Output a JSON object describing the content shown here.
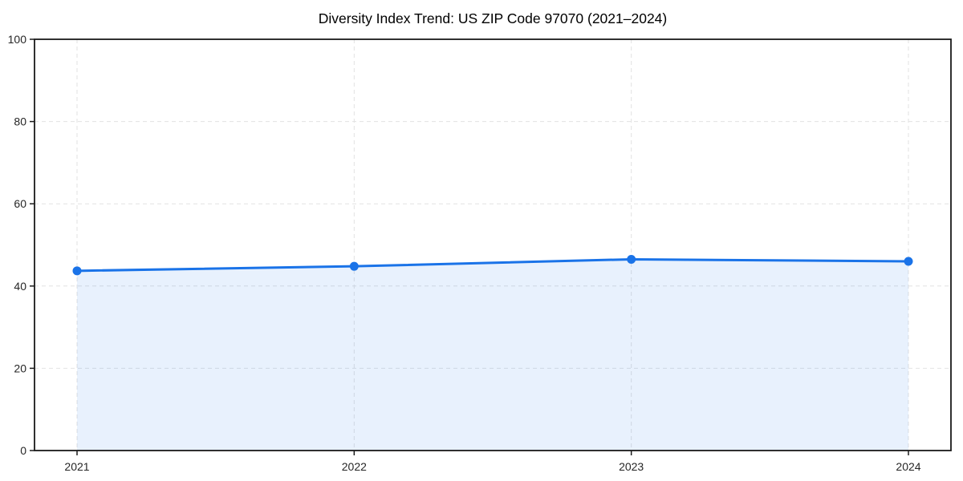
{
  "chart_data": {
    "type": "line",
    "title": "Diversity Index Trend: US ZIP Code 97070 (2021–2024)",
    "categories": [
      "2021",
      "2022",
      "2023",
      "2024"
    ],
    "values": [
      43.7,
      44.8,
      46.5,
      46.0
    ],
    "xlabel": "",
    "ylabel": "",
    "ylim": [
      0,
      100
    ],
    "yticks": [
      0,
      20,
      40,
      60,
      80,
      100
    ],
    "grid": true,
    "grid_style": "dashed",
    "legend": "none",
    "area_fill": true,
    "marker": "circle",
    "colors": {
      "line": "#1a73e8",
      "marker": "#1a73e8",
      "fill": "#1a73e8",
      "fill_opacity": 0.1,
      "grid": "#e2e2e2",
      "axis": "#1a1a1a",
      "tick_text": "#262626",
      "title_text": "#000000",
      "background": "#ffffff"
    }
  }
}
